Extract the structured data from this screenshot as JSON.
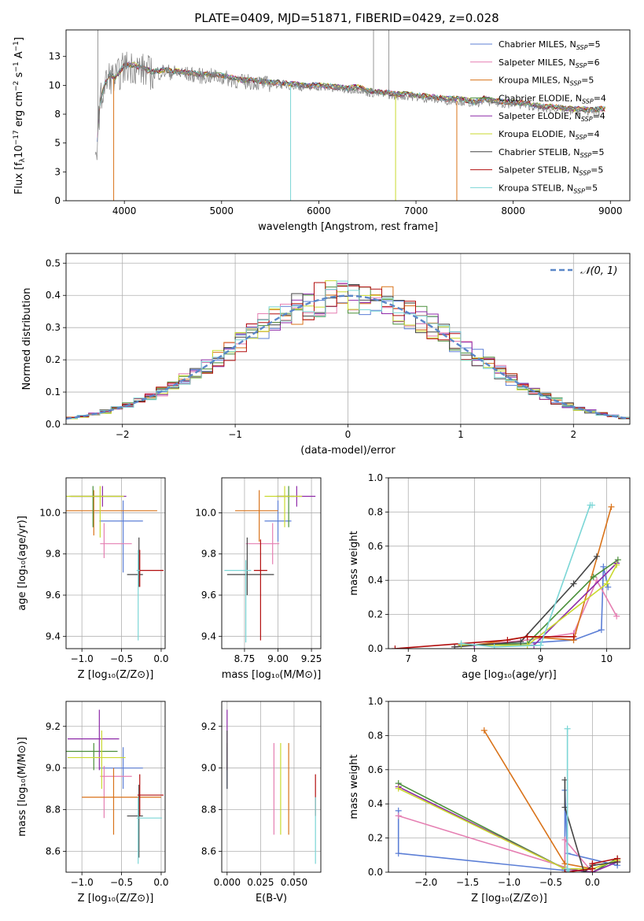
{
  "figure_title": "PLATE=0409, MJD=51871, FIBERID=0429, z=0.028",
  "palette": [
    "#5c7fd6",
    "#e57fb2",
    "#d9731a",
    "#4a8f3a",
    "#8e2aa8",
    "#c9d92e",
    "#454545",
    "#b20e0e",
    "#7bd6d6"
  ],
  "chart_data": [
    {
      "id": "spectrum",
      "type": "line",
      "xlabel": "wavelength [Angstrom, rest frame]",
      "ylabel": "Flux [f_λ10^-17 erg cm^-2 s^-1 A^-1]",
      "ylabel_parts": [
        "Flux [f",
        "λ",
        "10",
        "−17",
        " erg cm",
        "−2",
        " s",
        "−1",
        " A",
        "−1",
        "]"
      ],
      "xlim": [
        3400,
        9200
      ],
      "ylim": [
        0,
        14.8
      ],
      "xticks": [
        4000,
        5000,
        6000,
        7000,
        8000,
        9000
      ],
      "yticks": [
        0.0,
        2.5,
        5.0,
        7.5,
        10.0,
        12.5
      ],
      "legend_position": "top-right",
      "legend": [
        {
          "label": "Chabrier MILES, N",
          "sub": "SSP",
          "n": "=5"
        },
        {
          "label": "Salpeter MILES, N",
          "sub": "SSP",
          "n": "=6"
        },
        {
          "label": "Kroupa MILES, N",
          "sub": "SSP",
          "n": "=5"
        },
        {
          "label": "Chabrier ELODIE, N",
          "sub": "SSP",
          "n": "=4"
        },
        {
          "label": "Salpeter ELODIE, N",
          "sub": "SSP",
          "n": "=4"
        },
        {
          "label": "Kroupa ELODIE, N",
          "sub": "SSP",
          "n": "=4"
        },
        {
          "label": "Chabrier STELIB, N",
          "sub": "SSP",
          "n": "=5"
        },
        {
          "label": "Salpeter STELIB, N",
          "sub": "SSP",
          "n": "=5"
        },
        {
          "label": "Kroupa STELIB, N",
          "sub": "SSP",
          "n": "=5"
        }
      ],
      "data_curve": {
        "x": [
          3700,
          3750,
          3800,
          3850,
          3900,
          3950,
          4000,
          4100,
          4200,
          4300,
          4400,
          4500,
          4600,
          4700,
          4800,
          4900,
          5000,
          5100,
          5200,
          5300,
          5400,
          5500,
          5600,
          5700,
          5800,
          5900,
          6000,
          6100,
          6200,
          6300,
          6400,
          6500,
          6600,
          6700,
          6800,
          6900,
          7000,
          7100,
          7200,
          7300,
          7400,
          7500,
          7600,
          7700,
          7800,
          7900,
          8000,
          8100,
          8200,
          8300,
          8400,
          8500,
          8600,
          8700,
          8800,
          8900
        ],
        "y": [
          3.0,
          8.5,
          10.0,
          10.8,
          10.5,
          11.0,
          11.6,
          11.6,
          11.3,
          11.0,
          11.2,
          11.1,
          11.0,
          10.9,
          10.8,
          10.8,
          10.7,
          10.5,
          10.3,
          10.3,
          10.2,
          10.1,
          10.1,
          10.0,
          9.9,
          9.8,
          9.9,
          9.8,
          9.7,
          9.6,
          9.7,
          9.4,
          9.3,
          9.2,
          9.1,
          9.1,
          9.0,
          8.9,
          8.8,
          8.7,
          8.7,
          8.6,
          8.4,
          8.7,
          8.5,
          8.4,
          8.4,
          8.3,
          8.2,
          8.0,
          8.0,
          7.9,
          7.8,
          7.8,
          7.7,
          7.8
        ]
      },
      "emission_spikes": [
        {
          "x": 6563,
          "y": 14.8
        },
        {
          "x": 6720,
          "y": 14.8
        },
        {
          "x": 3727,
          "y": 14.8
        }
      ],
      "model_gaps": [
        {
          "x": 3890,
          "color_index": 2
        },
        {
          "x": 5710,
          "color_index": 8
        },
        {
          "x": 6790,
          "color_index": 5
        },
        {
          "x": 7420,
          "color_index": 2
        }
      ]
    },
    {
      "id": "residuals",
      "type": "histogram",
      "xlabel": "(data-model)/error",
      "ylabel": "Normed distribution",
      "xlim": [
        -2.5,
        2.5
      ],
      "ylim": [
        0,
        0.53
      ],
      "xticks": [
        -2,
        -1,
        0,
        1,
        2
      ],
      "yticks": [
        0.0,
        0.1,
        0.2,
        0.3,
        0.4,
        0.5
      ],
      "bin_width": 0.1,
      "legend_label": "𝒩(0, 1)",
      "legend_position": "top-right"
    },
    {
      "id": "age-vs-Z",
      "type": "errorbar",
      "xlabel": "Z [log₁₀(Z/Z⊙)]",
      "ylabel": "age  [log₁₀(age/yr)]",
      "xlim": [
        -1.2,
        0.05
      ],
      "ylim": [
        9.34,
        10.17
      ],
      "xticks": [
        -1.0,
        -0.5,
        0.0
      ],
      "yticks": [
        9.4,
        9.6,
        9.8,
        10.0
      ],
      "points": [
        {
          "x": -0.48,
          "y": 9.96,
          "xerr": [
            0.3,
            0.25
          ],
          "yerr": [
            0.25,
            0.1
          ]
        },
        {
          "x": -0.72,
          "y": 9.85,
          "xerr": [
            0.05,
            0.35
          ],
          "yerr": [
            0.07,
            0.1
          ]
        },
        {
          "x": -0.85,
          "y": 10.01,
          "xerr": [
            0.35,
            0.8
          ],
          "yerr": [
            0.12,
            0.1
          ]
        },
        {
          "x": -0.86,
          "y": 10.08,
          "xerr": [
            0.3,
            0.35
          ],
          "yerr": [
            0.15,
            0.05
          ]
        },
        {
          "x": -0.74,
          "y": 10.08,
          "xerr": [
            0.4,
            0.3
          ],
          "yerr": [
            0.05,
            0.05
          ]
        },
        {
          "x": -0.77,
          "y": 10.08,
          "xerr": [
            0.43,
            0.3
          ],
          "yerr": [
            0.2,
            0.05
          ]
        },
        {
          "x": -0.28,
          "y": 9.7,
          "xerr": [
            0.15,
            0.05
          ],
          "yerr": [
            0.06,
            0.18
          ]
        },
        {
          "x": -0.27,
          "y": 9.72,
          "xerr": [
            0.03,
            0.3
          ],
          "yerr": [
            0.08,
            0.1
          ]
        },
        {
          "x": -0.29,
          "y": 9.72,
          "xerr": [
            0.02,
            0.02
          ],
          "yerr": [
            0.34,
            0.1
          ]
        }
      ]
    },
    {
      "id": "age-vs-mass",
      "type": "errorbar",
      "xlabel": "mass [log₁₀(M/M⊙)]",
      "ylabel": "",
      "xlim": [
        8.58,
        9.32
      ],
      "ylim": [
        9.34,
        10.17
      ],
      "xticks": [
        8.75,
        9.0,
        9.25
      ],
      "yticks": [
        9.4,
        9.6,
        9.8,
        10.0
      ],
      "points": [
        {
          "x": 9.0,
          "y": 9.96,
          "xerr": [
            0.1,
            0.1
          ],
          "yerr": [
            0.1,
            0.1
          ]
        },
        {
          "x": 8.96,
          "y": 9.85,
          "xerr": [
            0.2,
            0.05
          ],
          "yerr": [
            0.1,
            0.1
          ]
        },
        {
          "x": 8.86,
          "y": 10.01,
          "xerr": [
            0.18,
            0.14
          ],
          "yerr": [
            0.15,
            0.1
          ]
        },
        {
          "x": 9.08,
          "y": 10.08,
          "xerr": [
            0.09,
            0.04
          ],
          "yerr": [
            0.15,
            0.05
          ]
        },
        {
          "x": 9.14,
          "y": 10.08,
          "xerr": [
            0.15,
            0.14
          ],
          "yerr": [
            0.05,
            0.05
          ]
        },
        {
          "x": 9.05,
          "y": 10.08,
          "xerr": [
            0.15,
            0.13
          ],
          "yerr": [
            0.15,
            0.05
          ]
        },
        {
          "x": 8.77,
          "y": 9.7,
          "xerr": [
            0.15,
            0.2
          ],
          "yerr": [
            0.1,
            0.18
          ]
        },
        {
          "x": 8.87,
          "y": 9.72,
          "xerr": [
            0.05,
            0.05
          ],
          "yerr": [
            0.34,
            0.15
          ]
        },
        {
          "x": 8.76,
          "y": 9.72,
          "xerr": [
            0.16,
            0.04
          ],
          "yerr": [
            0.35,
            0.05
          ]
        }
      ]
    },
    {
      "id": "weight-vs-age",
      "type": "line",
      "xlabel": "age  [log₁₀(age/yr)]",
      "ylabel": "mass weight",
      "xlim": [
        6.7,
        10.35
      ],
      "ylim": [
        0,
        1.0
      ],
      "xticks": [
        7,
        8,
        9,
        10
      ],
      "yticks": [
        0.0,
        0.2,
        0.4,
        0.6,
        0.8,
        1.0
      ],
      "series": [
        {
          "x": [
            8.0,
            8.3,
            9.5,
            9.92,
            9.95,
            10.02
          ],
          "y": [
            0.02,
            0.02,
            0.05,
            0.11,
            0.48,
            0.36
          ]
        },
        {
          "x": [
            7.7,
            8.8,
            9.5,
            9.85,
            10.15
          ],
          "y": [
            0.01,
            0.05,
            0.09,
            0.4,
            0.19
          ]
        },
        {
          "x": [
            8.0,
            8.8,
            9.5,
            10.07
          ],
          "y": [
            0.02,
            0.07,
            0.05,
            0.83
          ]
        },
        {
          "x": [
            7.8,
            8.8,
            9.8,
            10.17
          ],
          "y": [
            0.02,
            0.03,
            0.42,
            0.52
          ]
        },
        {
          "x": [
            8.0,
            8.9,
            10.15
          ],
          "y": [
            0.02,
            0.02,
            0.5
          ]
        },
        {
          "x": [
            7.8,
            8.8,
            10.0,
            10.15
          ],
          "y": [
            0.02,
            0.02,
            0.38,
            0.49
          ]
        },
        {
          "x": [
            7.7,
            8.7,
            9.5,
            9.85
          ],
          "y": [
            0.01,
            0.04,
            0.38,
            0.54
          ]
        },
        {
          "x": [
            6.8,
            8.5,
            8.8,
            9.5
          ],
          "y": [
            0.0,
            0.05,
            0.07,
            0.07
          ]
        },
        {
          "x": [
            7.8,
            8.3,
            9.0,
            9.75,
            9.78
          ],
          "y": [
            0.03,
            0.01,
            0.02,
            0.84,
            0.84
          ]
        }
      ]
    },
    {
      "id": "mass-vs-Z",
      "type": "errorbar",
      "xlabel": "Z [log₁₀(Z/Z⊙)]",
      "ylabel": "mass [log₁₀(M/M⊙)]",
      "xlim": [
        -1.2,
        0.05
      ],
      "ylim": [
        8.5,
        9.32
      ],
      "xticks": [
        -1.0,
        -0.5,
        0.0
      ],
      "yticks": [
        8.6,
        8.8,
        9.0,
        9.2
      ],
      "points": [
        {
          "x": -0.48,
          "y": 9.0,
          "xerr": [
            0.3,
            0.25
          ],
          "yerr": [
            0.1,
            0.1
          ]
        },
        {
          "x": -0.72,
          "y": 8.96,
          "xerr": [
            0.05,
            0.35
          ],
          "yerr": [
            0.2,
            0.05
          ]
        },
        {
          "x": -0.6,
          "y": 8.86,
          "xerr": [
            0.4,
            0.6
          ],
          "yerr": [
            0.18,
            0.14
          ]
        },
        {
          "x": -0.85,
          "y": 9.08,
          "xerr": [
            0.35,
            0.3
          ],
          "yerr": [
            0.09,
            0.04
          ]
        },
        {
          "x": -0.78,
          "y": 9.14,
          "xerr": [
            0.4,
            0.25
          ],
          "yerr": [
            0.15,
            0.14
          ]
        },
        {
          "x": -0.75,
          "y": 9.05,
          "xerr": [
            0.43,
            0.3
          ],
          "yerr": [
            0.15,
            0.13
          ]
        },
        {
          "x": -0.28,
          "y": 8.77,
          "xerr": [
            0.15,
            0.05
          ],
          "yerr": [
            0.2,
            0.15
          ]
        },
        {
          "x": -0.27,
          "y": 8.87,
          "xerr": [
            0.03,
            0.3
          ],
          "yerr": [
            0.1,
            0.1
          ]
        },
        {
          "x": -0.29,
          "y": 8.76,
          "xerr": [
            0.02,
            0.3
          ],
          "yerr": [
            0.22,
            0.1
          ]
        }
      ]
    },
    {
      "id": "mass-vs-EBV",
      "type": "errorbar",
      "xlabel": "E(B-V)",
      "ylabel": "",
      "xlim": [
        -0.004,
        0.07
      ],
      "ylim": [
        8.5,
        9.32
      ],
      "xticks": [
        0.0,
        0.025,
        0.05
      ],
      "yticks": [
        8.6,
        8.8,
        9.0,
        9.2
      ],
      "points": [
        {
          "x": 0.0,
          "y": 9.0,
          "xerr": [
            0,
            0
          ],
          "yerr": [
            0.1,
            0.1
          ]
        },
        {
          "x": 0.035,
          "y": 8.9,
          "xerr": [
            0,
            0
          ],
          "yerr": [
            0.22,
            0.22
          ]
        },
        {
          "x": 0.046,
          "y": 8.9,
          "xerr": [
            0,
            0
          ],
          "yerr": [
            0.22,
            0.22
          ]
        },
        {
          "x": 0.0,
          "y": 9.08,
          "xerr": [
            0,
            0
          ],
          "yerr": [
            0.09,
            0.04
          ]
        },
        {
          "x": 0.0,
          "y": 9.14,
          "xerr": [
            0,
            0
          ],
          "yerr": [
            0.15,
            0.14
          ]
        },
        {
          "x": 0.04,
          "y": 8.9,
          "xerr": [
            0,
            0
          ],
          "yerr": [
            0.22,
            0.22
          ]
        },
        {
          "x": 0.0,
          "y": 9.05,
          "xerr": [
            0,
            0
          ],
          "yerr": [
            0.15,
            0.13
          ]
        },
        {
          "x": 0.066,
          "y": 8.87,
          "xerr": [
            0,
            0
          ],
          "yerr": [
            0.1,
            0.1
          ]
        },
        {
          "x": 0.066,
          "y": 8.7,
          "xerr": [
            0,
            0
          ],
          "yerr": [
            0.16,
            0.16
          ]
        }
      ]
    },
    {
      "id": "weight-vs-Z",
      "type": "line",
      "xlabel": "Z [log₁₀(Z/Z⊙)]",
      "ylabel": "mass weight",
      "xlim": [
        -2.45,
        0.45
      ],
      "ylim": [
        0,
        1.0
      ],
      "xticks": [
        -2.0,
        -1.5,
        -1.0,
        -0.5,
        0.0
      ],
      "yticks": [
        0.0,
        0.2,
        0.4,
        0.6,
        0.8,
        1.0
      ],
      "series": [
        {
          "x": [
            -2.33,
            -2.33,
            -0.33,
            -0.33,
            -0.3,
            0.3,
            0.3
          ],
          "y": [
            0.36,
            0.11,
            0.01,
            0.48,
            0.11,
            0.04,
            0.06
          ]
        },
        {
          "x": [
            -2.33,
            -0.33,
            -0.33,
            0.0,
            0.3
          ],
          "y": [
            0.33,
            0.03,
            0.19,
            0.0,
            0.06
          ]
        },
        {
          "x": [
            -1.3,
            -0.33,
            0.0,
            0.3
          ],
          "y": [
            0.83,
            0.05,
            0.02,
            0.07
          ]
        },
        {
          "x": [
            -2.33,
            -0.33,
            0.0,
            0.3
          ],
          "y": [
            0.52,
            0.02,
            0.0,
            0.08
          ]
        },
        {
          "x": [
            -2.33,
            -0.33,
            0.0,
            0.3
          ],
          "y": [
            0.5,
            0.02,
            0.0,
            0.06
          ]
        },
        {
          "x": [
            -2.33,
            -0.33,
            0.0,
            0.3
          ],
          "y": [
            0.49,
            0.02,
            0.02,
            0.07
          ]
        },
        {
          "x": [
            -0.33,
            -0.33,
            -0.1,
            0.0,
            0.3
          ],
          "y": [
            0.54,
            0.38,
            0.0,
            0.04,
            0.06
          ]
        },
        {
          "x": [
            -0.33,
            0.0,
            0.0,
            0.3
          ],
          "y": [
            0.0,
            0.02,
            0.05,
            0.08
          ]
        },
        {
          "x": [
            -0.3,
            -0.3,
            -0.28
          ],
          "y": [
            0.84,
            0.02,
            0.0
          ]
        }
      ]
    }
  ]
}
